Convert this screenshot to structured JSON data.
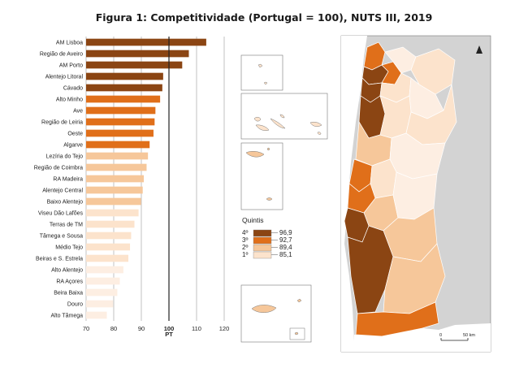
{
  "chart_data": {
    "type": "bar",
    "orientation": "horizontal",
    "title": "Figura 1: Competitividade (Portugal = 100), NUTS III, 2019",
    "categories": [
      "AM Lisboa",
      "Região de Aveiro",
      "AM Porto",
      "Alentejo Litoral",
      "Cávado",
      "Alto Minho",
      "Ave",
      "Região de Leiria",
      "Oeste",
      "Algarve",
      "Lezíria do Tejo",
      "Região de Coimbra",
      "RA Madeira",
      "Alentejo Central",
      "Baixo Alentejo",
      "Viseu Dão Lafões",
      "Terras de TM",
      "Tâmega e Sousa",
      "Médio Tejo",
      "Beiras e S. Estrela",
      "Alto Alentejo",
      "RA Açores",
      "Beira Baixa",
      "Douro",
      "Alto Tâmega"
    ],
    "values": [
      113.5,
      107.2,
      104.8,
      97.9,
      97.6,
      96.8,
      95.1,
      94.8,
      94.4,
      93.0,
      92.4,
      91.9,
      90.9,
      90.5,
      89.9,
      89.0,
      87.5,
      86.3,
      85.9,
      85.3,
      83.5,
      82.2,
      81.3,
      79.8,
      77.5
    ],
    "xlim": [
      70,
      120
    ],
    "xticks": [
      70,
      80,
      90,
      100,
      110,
      120
    ],
    "reference_line": {
      "value": 100,
      "label": "PT"
    },
    "grid": true,
    "quintile_colors": [
      "#8b4513",
      "#e06f1a",
      "#f6c79a",
      "#fce3cc",
      "#fdeee2"
    ],
    "legend": {
      "title": "Quintis",
      "placement": "map-left",
      "entries": [
        {
          "label": "4º",
          "value": "96,9",
          "color": "#8b4513"
        },
        {
          "label": "3º",
          "value": "92,7",
          "color": "#e06f1a"
        },
        {
          "label": "2º",
          "value": "89,4",
          "color": "#f6c79a"
        },
        {
          "label": "1º",
          "value": "85,1",
          "color": "#fce3cc"
        }
      ]
    }
  },
  "map": {
    "scale_start": "0",
    "scale_end": "50 km",
    "north_arrow": "north-arrow-icon",
    "land_color": "#cfcfcf",
    "sea_color": "#ffffff"
  }
}
